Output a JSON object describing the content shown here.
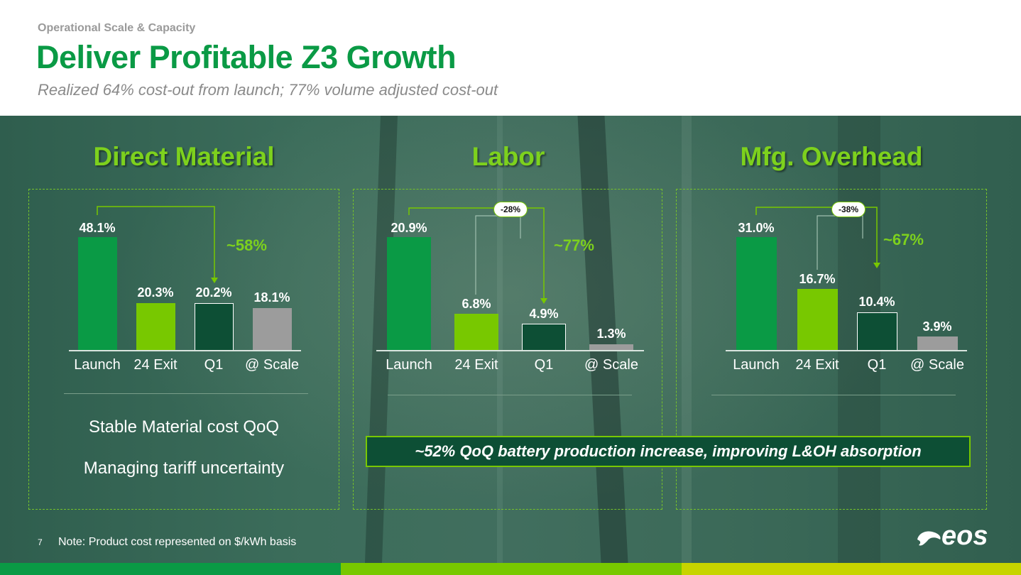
{
  "header": {
    "eyebrow": "Operational Scale & Capacity",
    "title": "Deliver Profitable Z3 Growth",
    "subtitle": "Realized 64% cost-out from launch; 77% volume adjusted cost-out"
  },
  "colors": {
    "title_green": "#0a9a45",
    "section_green": "#7dd11d",
    "launch": "#0a9a45",
    "exit_24": "#78c800",
    "q1": "#0d4f35",
    "scale": "#9c9c9c"
  },
  "categories": [
    "Launch",
    "24 Exit",
    "Q1",
    "@ Scale"
  ],
  "sections": [
    {
      "title": "Direct Material",
      "values": [
        "48.1%",
        "20.3%",
        "20.2%",
        "18.1%"
      ],
      "reduction": "~58%",
      "notes": [
        "Stable Material cost QoQ",
        "Managing tariff uncertainty"
      ]
    },
    {
      "title": "Labor",
      "values": [
        "20.9%",
        "6.8%",
        "4.9%",
        "1.3%"
      ],
      "reduction": "~77%",
      "qoq": "-28%"
    },
    {
      "title": "Mfg. Overhead",
      "values": [
        "31.0%",
        "16.7%",
        "10.4%",
        "3.9%"
      ],
      "reduction": "~67%",
      "qoq": "-38%"
    }
  ],
  "callout": "~52% QoQ battery production increase, improving L&OH absorption",
  "footer": {
    "page_number": "7",
    "note": "Note: Product cost represented on $/kWh basis",
    "logo": "eos"
  }
}
